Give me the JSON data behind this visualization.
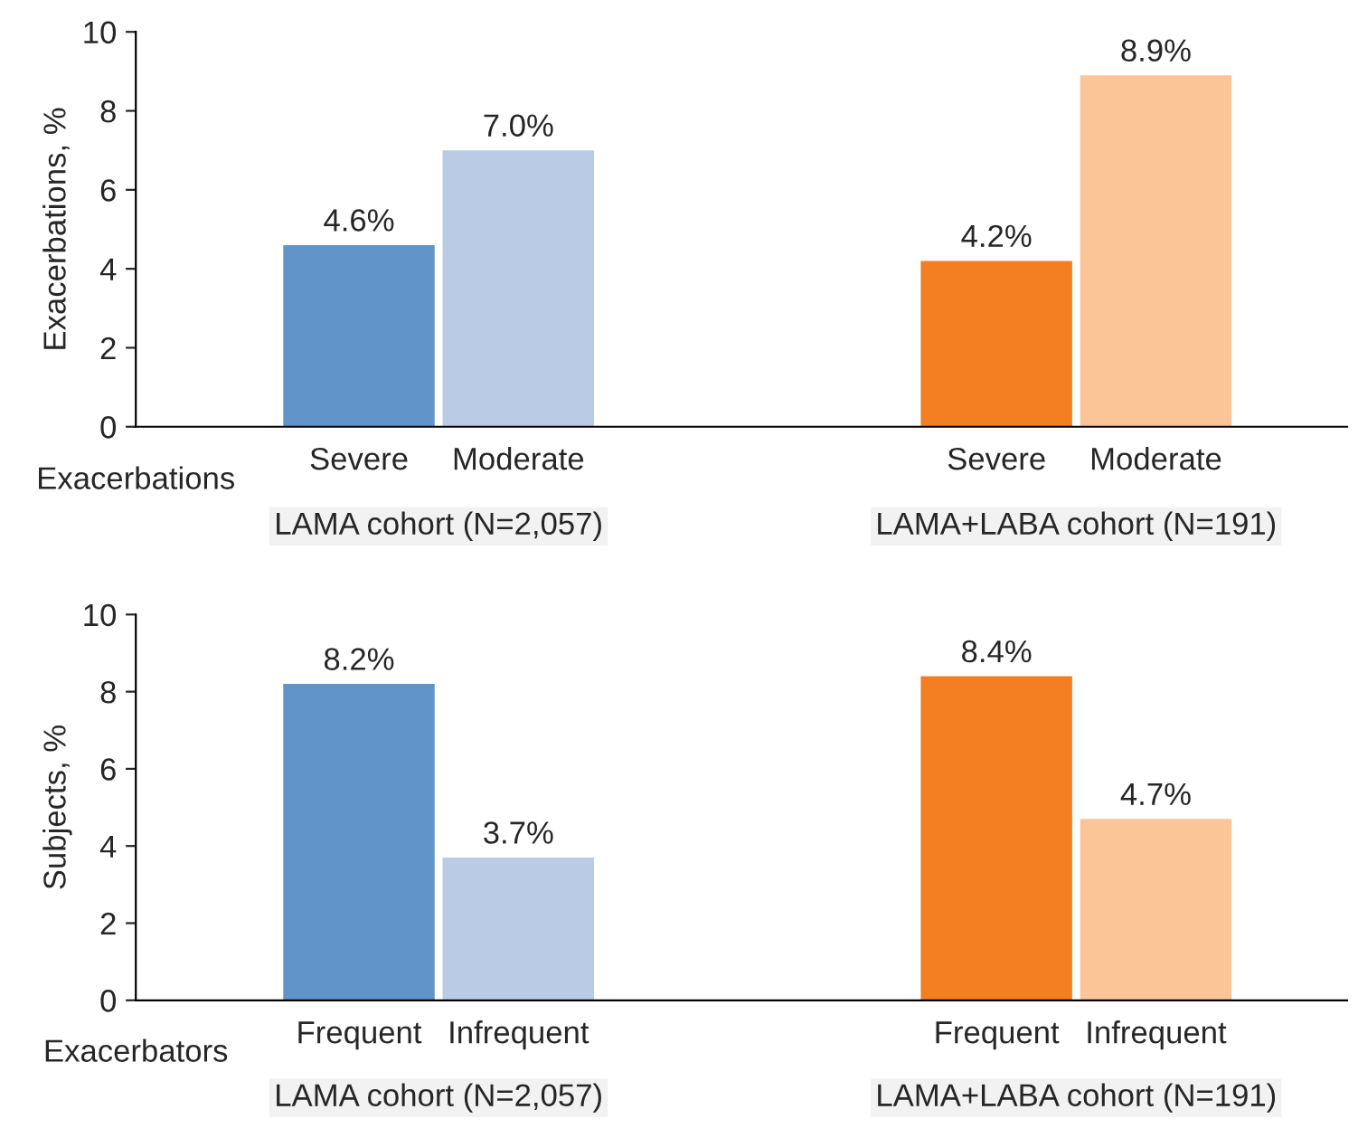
{
  "chart_data": [
    {
      "type": "bar",
      "ylabel": "Exacerbations, %",
      "categories": [
        "Severe",
        "Moderate",
        null,
        null,
        "Severe",
        "Moderate"
      ],
      "values": [
        4.6,
        7.0,
        null,
        null,
        4.2,
        8.9
      ],
      "colors": [
        "#6195ca",
        "#b9cbe5",
        null,
        null,
        "#f37f22",
        "#fcc597"
      ],
      "value_labels": [
        "4.6%",
        "7.0%",
        null,
        null,
        "4.2%",
        "8.9%"
      ],
      "ylim": [
        0,
        10
      ],
      "yticks": [
        0,
        2,
        4,
        6,
        8,
        10
      ],
      "grid": false,
      "legend": false,
      "annotations": [
        "Exacerbations",
        "LAMA cohort (N=2,057)",
        "LAMA+LABA cohort (N=191)"
      ]
    },
    {
      "type": "bar",
      "ylabel": "Subjects, %",
      "categories": [
        "Frequent",
        "Infrequent",
        null,
        null,
        "Frequent",
        "Infrequent"
      ],
      "values": [
        8.2,
        3.7,
        null,
        null,
        8.4,
        4.7
      ],
      "colors": [
        "#6195ca",
        "#b9cbe5",
        null,
        null,
        "#f37f22",
        "#fcc597"
      ],
      "value_labels": [
        "8.2%",
        "3.7%",
        null,
        null,
        "8.4%",
        "4.7%"
      ],
      "ylim": [
        0,
        10
      ],
      "yticks": [
        0,
        2,
        4,
        6,
        8,
        10
      ],
      "grid": false,
      "legend": false,
      "annotations": [
        "Exacerbators",
        "LAMA cohort (N=2,057)",
        "LAMA+LABA cohort (N=191)"
      ]
    }
  ]
}
